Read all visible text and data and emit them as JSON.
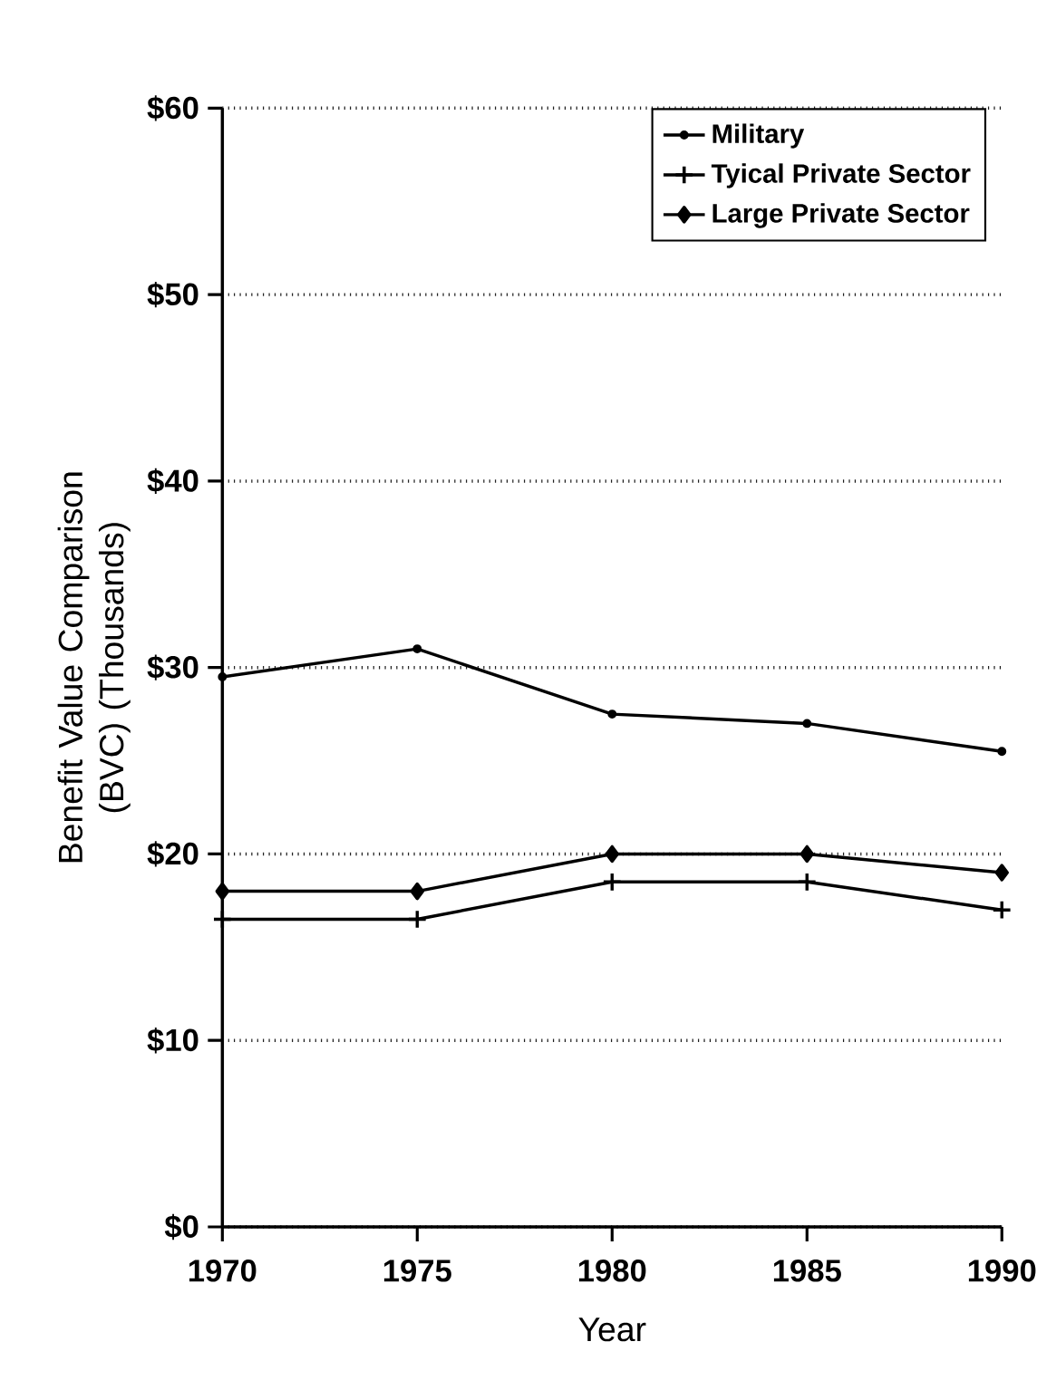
{
  "chart_data": {
    "type": "line",
    "xlabel": "Year",
    "ylabel": "Benefit Value Comparison (BVC) (Thousands)",
    "x": [
      1970,
      1975,
      1980,
      1985,
      1990
    ],
    "series": [
      {
        "name": "Military",
        "color": "#000000",
        "marker": "circle",
        "values": [
          29.5,
          31.0,
          27.5,
          27.0,
          25.5
        ]
      },
      {
        "name": "Tyical Private Sector",
        "color": "#000000",
        "marker": "cross",
        "values": [
          16.5,
          16.5,
          18.5,
          18.5,
          17.0
        ]
      },
      {
        "name": "Large Private Sector",
        "color": "#000000",
        "marker": "diamond",
        "values": [
          18.0,
          18.0,
          20.0,
          20.0,
          19.0
        ]
      }
    ],
    "xlim": [
      1970,
      1990
    ],
    "xticks": [
      1970,
      1975,
      1980,
      1985,
      1990
    ],
    "ylim": [
      0,
      60
    ],
    "yticks": [
      {
        "value": 0,
        "label": "$0"
      },
      {
        "value": 10,
        "label": "$10"
      },
      {
        "value": 20,
        "label": "$20"
      },
      {
        "value": 30,
        "label": "$30"
      },
      {
        "value": 40,
        "label": "$40"
      },
      {
        "value": 50,
        "label": "$50"
      },
      {
        "value": 60,
        "label": "$60"
      }
    ],
    "grid": "y",
    "legend": "top right",
    "line_style": "solid"
  }
}
